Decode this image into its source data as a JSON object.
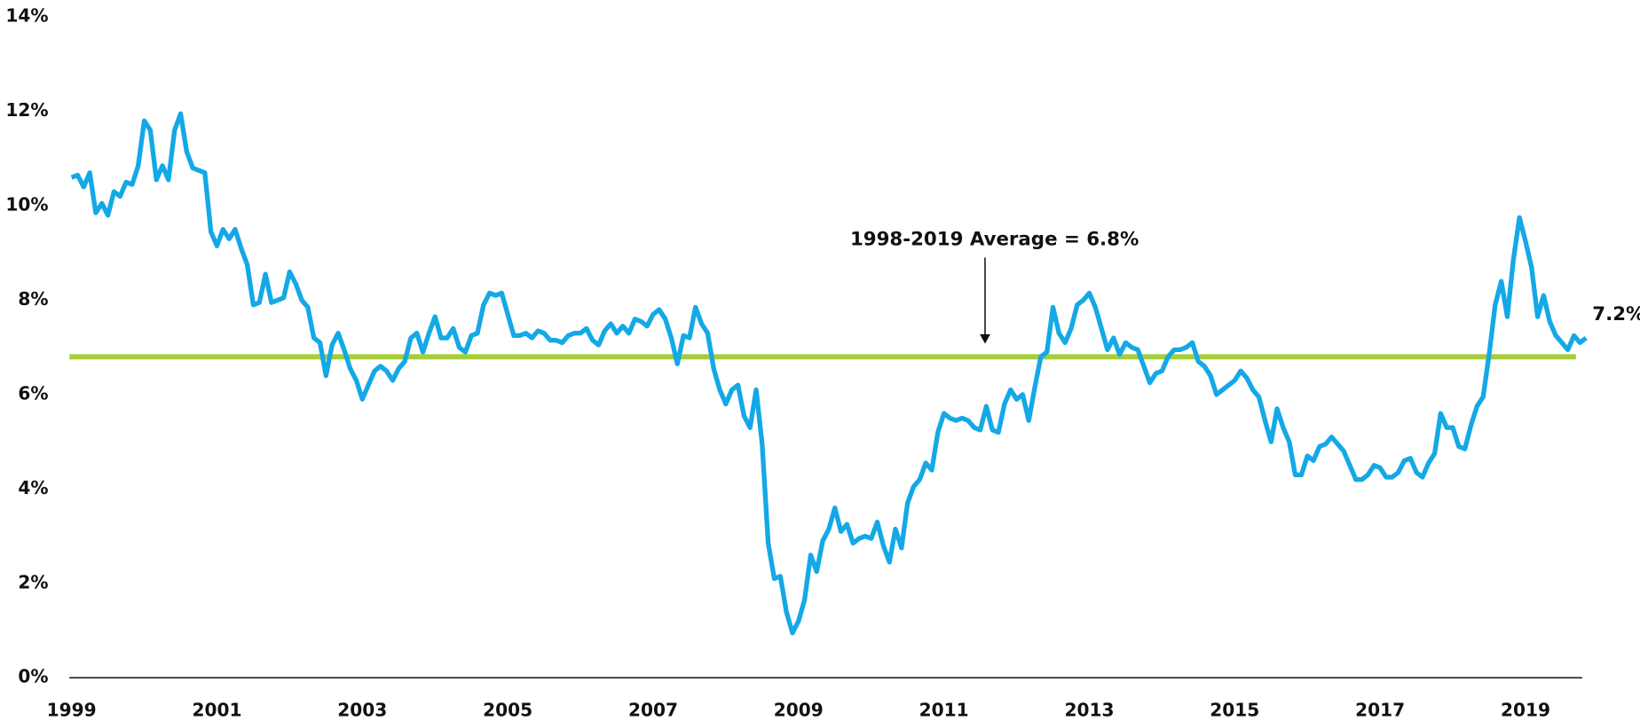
{
  "chart_data": {
    "type": "line",
    "annotation": "1998-2019 Average = 6.8%",
    "reference_line": {
      "value": 6.8,
      "color": "#a6ce39"
    },
    "last_label": "7.2%",
    "xlim": [
      1998.97,
      2019.78
    ],
    "xticks": [
      1999,
      2001,
      2003,
      2005,
      2007,
      2009,
      2011,
      2013,
      2015,
      2017,
      2019
    ],
    "ylim": [
      0,
      14
    ],
    "yticks": [
      {
        "value": 0,
        "label": "0%"
      },
      {
        "value": 2,
        "label": "2%"
      },
      {
        "value": 4,
        "label": "4%"
      },
      {
        "value": 6,
        "label": "6%"
      },
      {
        "value": 8,
        "label": "8%"
      },
      {
        "value": 10,
        "label": "10%"
      },
      {
        "value": 12,
        "label": "12%"
      },
      {
        "value": 14,
        "label": "14%"
      }
    ],
    "grid": false,
    "x": [
      1999,
      1999.083,
      1999.167,
      1999.25,
      1999.333,
      1999.417,
      1999.5,
      1999.583,
      1999.667,
      1999.75,
      1999.833,
      1999.917,
      2000,
      2000.083,
      2000.167,
      2000.25,
      2000.333,
      2000.417,
      2000.5,
      2000.583,
      2000.667,
      2000.75,
      2000.833,
      2000.917,
      2001,
      2001.083,
      2001.167,
      2001.25,
      2001.333,
      2001.417,
      2001.5,
      2001.583,
      2001.667,
      2001.75,
      2001.833,
      2001.917,
      2002,
      2002.083,
      2002.167,
      2002.25,
      2002.333,
      2002.417,
      2002.5,
      2002.583,
      2002.667,
      2002.75,
      2002.833,
      2002.917,
      2003,
      2003.083,
      2003.167,
      2003.25,
      2003.333,
      2003.417,
      2003.5,
      2003.583,
      2003.667,
      2003.75,
      2003.833,
      2003.917,
      2004,
      2004.083,
      2004.167,
      2004.25,
      2004.333,
      2004.417,
      2004.5,
      2004.583,
      2004.667,
      2004.75,
      2004.833,
      2004.917,
      2005,
      2005.083,
      2005.167,
      2005.25,
      2005.333,
      2005.417,
      2005.5,
      2005.583,
      2005.667,
      2005.75,
      2005.833,
      2005.917,
      2006,
      2006.083,
      2006.167,
      2006.25,
      2006.333,
      2006.417,
      2006.5,
      2006.583,
      2006.667,
      2006.75,
      2006.833,
      2006.917,
      2007,
      2007.083,
      2007.167,
      2007.25,
      2007.333,
      2007.417,
      2007.5,
      2007.583,
      2007.667,
      2007.75,
      2007.833,
      2007.917,
      2008,
      2008.083,
      2008.167,
      2008.25,
      2008.333,
      2008.417,
      2008.5,
      2008.583,
      2008.667,
      2008.75,
      2008.833,
      2008.917,
      2009,
      2009.083,
      2009.167,
      2009.25,
      2009.333,
      2009.417,
      2009.5,
      2009.583,
      2009.667,
      2009.75,
      2009.833,
      2009.917,
      2010,
      2010.083,
      2010.167,
      2010.25,
      2010.333,
      2010.417,
      2010.5,
      2010.583,
      2010.667,
      2010.75,
      2010.833,
      2010.917,
      2011,
      2011.083,
      2011.167,
      2011.25,
      2011.333,
      2011.417,
      2011.5,
      2011.583,
      2011.667,
      2011.75,
      2011.833,
      2011.917,
      2012,
      2012.083,
      2012.167,
      2012.25,
      2012.333,
      2012.417,
      2012.5,
      2012.583,
      2012.667,
      2012.75,
      2012.833,
      2012.917,
      2013,
      2013.083,
      2013.167,
      2013.25,
      2013.333,
      2013.417,
      2013.5,
      2013.583,
      2013.667,
      2013.75,
      2013.833,
      2013.917,
      2014,
      2014.083,
      2014.167,
      2014.25,
      2014.333,
      2014.417,
      2014.5,
      2014.583,
      2014.667,
      2014.75,
      2014.833,
      2014.917,
      2015,
      2015.083,
      2015.167,
      2015.25,
      2015.333,
      2015.417,
      2015.5,
      2015.583,
      2015.667,
      2015.75,
      2015.833,
      2015.917,
      2016,
      2016.083,
      2016.167,
      2016.25,
      2016.333,
      2016.417,
      2016.5,
      2016.583,
      2016.667,
      2016.75,
      2016.833,
      2016.917,
      2017,
      2017.083,
      2017.167,
      2017.25,
      2017.333,
      2017.417,
      2017.5,
      2017.583,
      2017.667,
      2017.75,
      2017.833,
      2017.917,
      2018,
      2018.083,
      2018.167,
      2018.25,
      2018.333,
      2018.417,
      2018.5,
      2018.583,
      2018.667,
      2018.75,
      2018.833,
      2018.917,
      2019,
      2019.083,
      2019.167,
      2019.25,
      2019.333,
      2019.417,
      2019.5,
      2019.583,
      2019.667,
      2019.75,
      2019.833
    ],
    "series": [
      {
        "color": "#14a8e6",
        "values": [
          10.6,
          10.65,
          10.4,
          10.7,
          9.85,
          10.05,
          9.8,
          10.3,
          10.2,
          10.5,
          10.45,
          10.85,
          11.8,
          11.6,
          10.55,
          10.85,
          10.55,
          11.6,
          11.95,
          11.15,
          10.8,
          10.75,
          10.7,
          9.45,
          9.15,
          9.5,
          9.3,
          9.5,
          9.1,
          8.75,
          7.9,
          7.95,
          8.55,
          7.95,
          8.0,
          8.05,
          8.6,
          8.35,
          8.0,
          7.85,
          7.2,
          7.1,
          6.4,
          7.05,
          7.3,
          6.95,
          6.55,
          6.3,
          5.9,
          6.2,
          6.5,
          6.6,
          6.5,
          6.3,
          6.55,
          6.7,
          7.2,
          7.3,
          6.9,
          7.3,
          7.65,
          7.2,
          7.2,
          7.4,
          7.0,
          6.9,
          7.25,
          7.3,
          7.9,
          8.15,
          8.1,
          8.15,
          7.7,
          7.25,
          7.25,
          7.3,
          7.2,
          7.35,
          7.3,
          7.15,
          7.15,
          7.1,
          7.25,
          7.3,
          7.3,
          7.4,
          7.15,
          7.05,
          7.35,
          7.5,
          7.3,
          7.45,
          7.3,
          7.6,
          7.55,
          7.45,
          7.7,
          7.8,
          7.6,
          7.2,
          6.65,
          7.25,
          7.2,
          7.85,
          7.5,
          7.3,
          6.55,
          6.1,
          5.8,
          6.1,
          6.2,
          5.55,
          5.3,
          6.1,
          4.95,
          2.85,
          2.1,
          2.15,
          1.4,
          0.95,
          1.2,
          1.65,
          2.6,
          2.25,
          2.9,
          3.15,
          3.6,
          3.1,
          3.25,
          2.85,
          2.95,
          3.0,
          2.95,
          3.3,
          2.8,
          2.45,
          3.15,
          2.75,
          3.7,
          4.05,
          4.2,
          4.55,
          4.4,
          5.2,
          5.6,
          5.5,
          5.45,
          5.5,
          5.45,
          5.3,
          5.25,
          5.75,
          5.25,
          5.2,
          5.8,
          6.1,
          5.9,
          6.0,
          5.45,
          6.15,
          6.8,
          6.9,
          7.85,
          7.3,
          7.1,
          7.4,
          7.9,
          8.0,
          8.15,
          7.85,
          7.4,
          6.95,
          7.2,
          6.85,
          7.1,
          7.0,
          6.95,
          6.6,
          6.25,
          6.45,
          6.5,
          6.8,
          6.95,
          6.95,
          7.0,
          7.1,
          6.7,
          6.6,
          6.4,
          6.0,
          6.1,
          6.2,
          6.3,
          6.5,
          6.35,
          6.1,
          5.95,
          5.45,
          5.0,
          5.7,
          5.3,
          5.0,
          4.3,
          4.3,
          4.7,
          4.6,
          4.9,
          4.95,
          5.1,
          4.95,
          4.8,
          4.5,
          4.2,
          4.2,
          4.3,
          4.5,
          4.45,
          4.25,
          4.25,
          4.35,
          4.6,
          4.65,
          4.35,
          4.25,
          4.55,
          4.75,
          5.6,
          5.3,
          5.3,
          4.9,
          4.85,
          5.35,
          5.75,
          5.95,
          6.85,
          7.9,
          8.4,
          7.65,
          8.85,
          9.75,
          9.25,
          8.7,
          7.65,
          8.1,
          7.55,
          7.25,
          7.1,
          6.95,
          7.25,
          7.1,
          7.2
        ]
      }
    ]
  }
}
